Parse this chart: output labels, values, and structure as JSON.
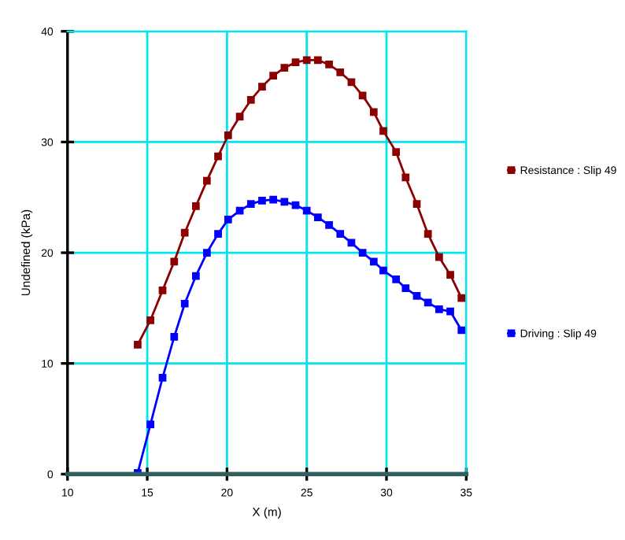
{
  "chart_data": {
    "type": "line",
    "xlabel": "X (m)",
    "ylabel": "Undefined (kPa)",
    "xlim": [
      10,
      35
    ],
    "xticks": [
      10,
      15,
      20,
      25,
      30,
      35
    ],
    "ylim": [
      0,
      40
    ],
    "yticks": [
      0,
      10,
      20,
      30,
      40
    ],
    "grid": true,
    "legend": "right",
    "marker": "square",
    "line_style": "solid",
    "series": [
      {
        "name": "Resistance : Slip 49",
        "color": "#8b0000",
        "x": [
          14.4,
          15.2,
          15.96,
          16.69,
          17.35,
          18.05,
          18.74,
          19.44,
          20.07,
          20.8,
          21.5,
          22.2,
          22.9,
          23.6,
          24.3,
          25.0,
          25.7,
          26.4,
          27.1,
          27.8,
          28.5,
          29.2,
          29.8,
          30.6,
          31.2,
          31.9,
          32.6,
          33.3,
          34.0,
          34.7
        ],
        "values": [
          11.7,
          13.9,
          16.6,
          19.2,
          21.8,
          24.2,
          26.5,
          28.7,
          30.6,
          32.3,
          33.8,
          35.0,
          36.0,
          36.7,
          37.2,
          37.4,
          37.4,
          37.0,
          36.3,
          35.4,
          34.2,
          32.7,
          31.0,
          29.1,
          26.8,
          24.4,
          21.7,
          19.6,
          18.0,
          15.9
        ]
      },
      {
        "name": "Driving : Slip 49",
        "color": "#0000ff",
        "x": [
          14.4,
          15.2,
          15.96,
          16.69,
          17.35,
          18.05,
          18.74,
          19.44,
          20.07,
          20.8,
          21.5,
          22.2,
          22.9,
          23.6,
          24.3,
          25.0,
          25.7,
          26.4,
          27.1,
          27.8,
          28.5,
          29.2,
          29.8,
          30.6,
          31.2,
          31.9,
          32.6,
          33.3,
          34.0,
          34.7
        ],
        "values": [
          0.1,
          4.5,
          8.7,
          12.4,
          15.4,
          17.9,
          20.0,
          21.7,
          23.0,
          23.8,
          24.4,
          24.7,
          24.8,
          24.6,
          24.3,
          23.8,
          23.2,
          22.5,
          21.7,
          20.9,
          20.0,
          19.2,
          18.4,
          17.6,
          16.8,
          16.1,
          15.5,
          14.9,
          14.7,
          13.0
        ]
      }
    ]
  }
}
